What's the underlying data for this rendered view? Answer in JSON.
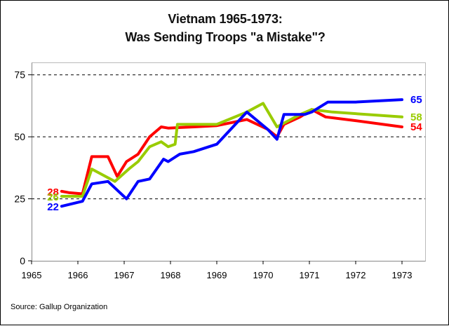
{
  "chart_data": {
    "type": "line",
    "title": "Vietnam 1965-1973:",
    "subtitle": "Was Sending Troops \"a Mistake\"?",
    "xlabel": "",
    "ylabel": "",
    "xlim": [
      1965,
      1973.5
    ],
    "ylim": [
      0,
      80
    ],
    "x_ticks": [
      1965,
      1966,
      1967,
      1968,
      1969,
      1970,
      1971,
      1972,
      1973
    ],
    "x_tick_labels": [
      "1965",
      "1966",
      "1967",
      "1968",
      "1969",
      "1970",
      "1971",
      "1972",
      "1973"
    ],
    "y_ticks": [
      0,
      25,
      50,
      75
    ],
    "y_tick_labels": [
      "0",
      "25",
      "50",
      "75"
    ],
    "gridlines": "dashed horizontal at 25, 50, 75",
    "series": [
      {
        "color": "#ff0000",
        "start_label": "28",
        "end_label": "54",
        "points": [
          [
            1965.65,
            28
          ],
          [
            1965.8,
            27.5
          ],
          [
            1966.1,
            27
          ],
          [
            1966.3,
            42
          ],
          [
            1966.65,
            42
          ],
          [
            1966.85,
            34
          ],
          [
            1967.05,
            40
          ],
          [
            1967.3,
            43
          ],
          [
            1967.55,
            50
          ],
          [
            1967.8,
            54
          ],
          [
            1967.95,
            53.5
          ],
          [
            1968.5,
            54
          ],
          [
            1969.0,
            54.5
          ],
          [
            1969.65,
            57
          ],
          [
            1970.1,
            53
          ],
          [
            1970.3,
            50
          ],
          [
            1970.45,
            55
          ],
          [
            1970.8,
            58
          ],
          [
            1971.05,
            61
          ],
          [
            1971.35,
            58
          ],
          [
            1972.0,
            56.5
          ],
          [
            1973.0,
            54
          ]
        ]
      },
      {
        "color": "#99cc00",
        "start_label": "26",
        "end_label": "58",
        "points": [
          [
            1965.65,
            26
          ],
          [
            1965.8,
            26
          ],
          [
            1966.1,
            26
          ],
          [
            1966.3,
            37
          ],
          [
            1966.8,
            32
          ],
          [
            1967.1,
            37
          ],
          [
            1967.3,
            40
          ],
          [
            1967.55,
            46
          ],
          [
            1967.8,
            48
          ],
          [
            1967.95,
            46
          ],
          [
            1968.1,
            47
          ],
          [
            1968.15,
            55
          ],
          [
            1968.5,
            55
          ],
          [
            1969.0,
            55
          ],
          [
            1969.65,
            60
          ],
          [
            1970.0,
            63.5
          ],
          [
            1970.3,
            54
          ],
          [
            1970.5,
            56
          ],
          [
            1970.8,
            59
          ],
          [
            1971.05,
            61
          ],
          [
            1971.5,
            60
          ],
          [
            1973.0,
            58
          ]
        ]
      },
      {
        "color": "#0000ff",
        "start_label": "22",
        "end_label": "65",
        "points": [
          [
            1965.65,
            22
          ],
          [
            1966.1,
            24
          ],
          [
            1966.3,
            31
          ],
          [
            1966.65,
            32
          ],
          [
            1967.05,
            25
          ],
          [
            1967.3,
            32
          ],
          [
            1967.55,
            33
          ],
          [
            1967.85,
            41
          ],
          [
            1967.95,
            40
          ],
          [
            1968.2,
            43
          ],
          [
            1968.5,
            44
          ],
          [
            1969.0,
            47
          ],
          [
            1969.65,
            60
          ],
          [
            1970.1,
            53
          ],
          [
            1970.3,
            49
          ],
          [
            1970.45,
            59
          ],
          [
            1970.9,
            59
          ],
          [
            1971.05,
            60
          ],
          [
            1971.4,
            64
          ],
          [
            1972.0,
            64
          ],
          [
            1973.0,
            65
          ]
        ]
      }
    ]
  },
  "footer": {
    "source": "Source: Gallup Organization"
  }
}
